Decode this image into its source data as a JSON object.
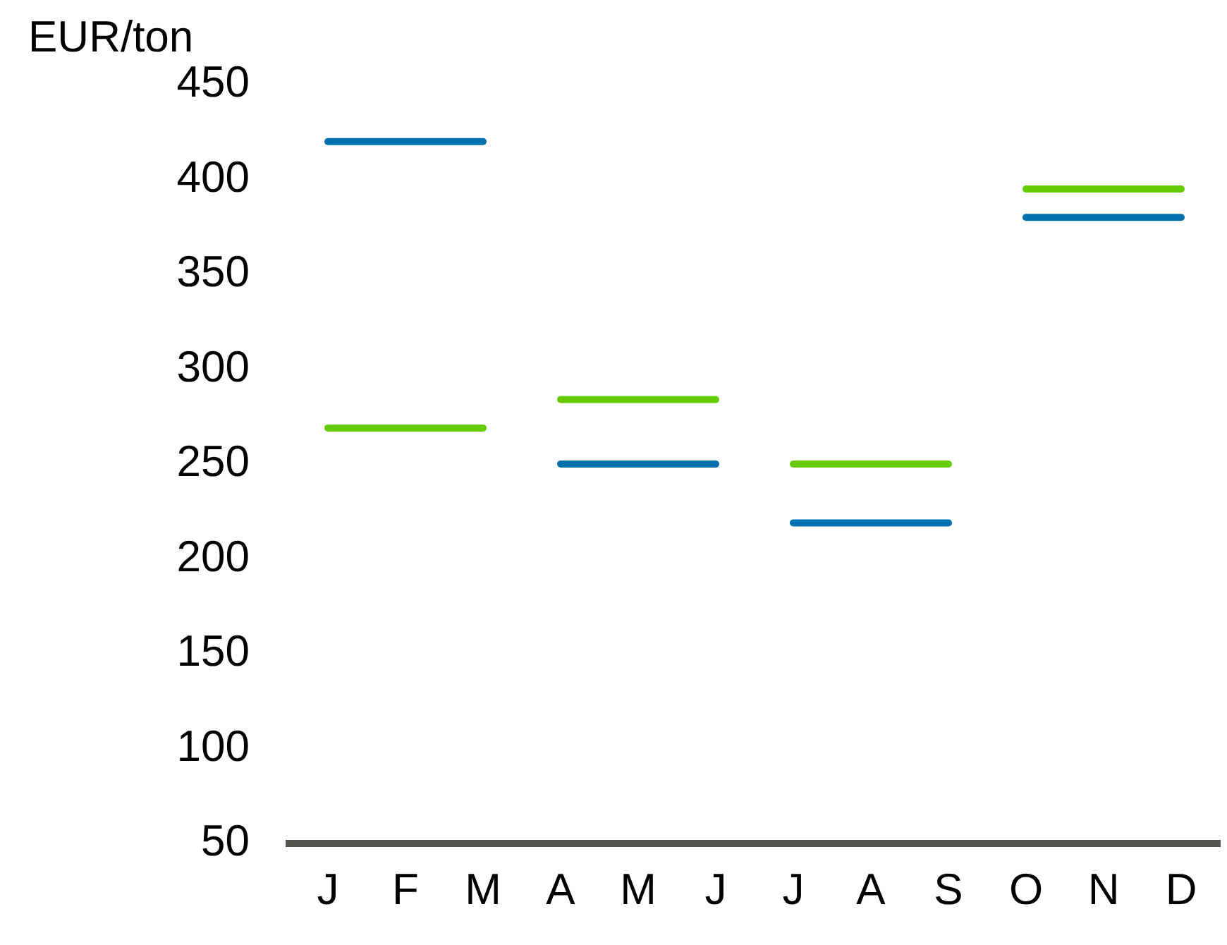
{
  "chart_data": {
    "type": "line",
    "ylabel": "EUR/ton",
    "categories": [
      "J",
      "F",
      "M",
      "A",
      "M",
      "J",
      "J",
      "A",
      "S",
      "O",
      "N",
      "D"
    ],
    "series": [
      {
        "color": "#0071ae",
        "values": [
          420,
          420,
          420,
          250,
          250,
          250,
          219,
          219,
          219,
          380,
          380,
          380
        ]
      },
      {
        "color": "#66cc00",
        "values": [
          269,
          269,
          269,
          284,
          284,
          284,
          250,
          250,
          250,
          395,
          395,
          395
        ]
      }
    ],
    "ylim": [
      50,
      450
    ],
    "yticks": [
      50,
      100,
      150,
      200,
      250,
      300,
      350,
      400,
      450
    ],
    "grid": false,
    "legend": false,
    "marker": "none",
    "line_style": "solid"
  }
}
